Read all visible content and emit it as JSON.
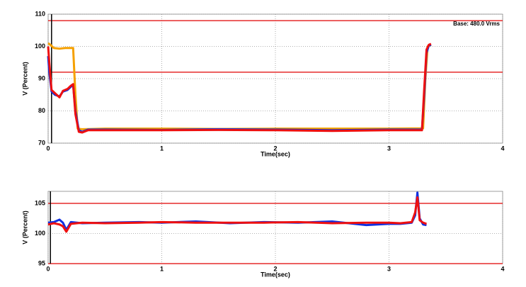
{
  "chart_data": [
    {
      "type": "line",
      "y_label": "V (Percent)",
      "x_label": "Time(sec)",
      "annotation": "Base: 480.0 Vrms",
      "xlim": [
        0,
        4
      ],
      "xticks": [
        0,
        1,
        2,
        3,
        4
      ],
      "ylim": [
        70,
        110
      ],
      "yticks": [
        70,
        80,
        90,
        100,
        110
      ],
      "grid": true,
      "reference_lines": [
        108,
        92
      ],
      "reference_color": "#e00000",
      "marker_x": 0.03,
      "series": [
        {
          "color": "#f5a000",
          "x": [
            0,
            0.02,
            0.05,
            0.1,
            0.15,
            0.2,
            0.22,
            0.24,
            0.26,
            0.3,
            0.5,
            1,
            1.5,
            2,
            2.5,
            3,
            3.3,
            3.32,
            3.34,
            3.37
          ],
          "values": [
            101,
            100.5,
            99.5,
            99.3,
            99.5,
            99.5,
            99.5,
            85,
            74.5,
            74.3,
            74.5,
            74.5,
            74.4,
            74.5,
            74.5,
            74.5,
            74.6,
            90,
            100,
            100.5
          ]
        },
        {
          "color": "#1030e0",
          "x": [
            0,
            0.01,
            0.03,
            0.06,
            0.1,
            0.13,
            0.17,
            0.2,
            0.22,
            0.24,
            0.27,
            0.3,
            0.35,
            0.5,
            1,
            1.5,
            2,
            2.5,
            3,
            3.29,
            3.31,
            3.33,
            3.35,
            3.37
          ],
          "values": [
            97,
            92,
            86,
            85,
            84.5,
            86,
            86.5,
            87.5,
            88,
            80,
            74,
            73.5,
            74.2,
            74.2,
            74.1,
            74.3,
            74.2,
            74,
            74.2,
            74.2,
            85,
            98,
            100.3,
            100.5
          ]
        },
        {
          "color": "#ee1010",
          "x": [
            0,
            0.01,
            0.03,
            0.06,
            0.1,
            0.13,
            0.17,
            0.2,
            0.22,
            0.24,
            0.27,
            0.3,
            0.35,
            0.5,
            1,
            1.5,
            2,
            2.5,
            3,
            3.29,
            3.31,
            3.33,
            3.35,
            3.37
          ],
          "values": [
            100,
            95,
            86.5,
            85.5,
            84.2,
            86.2,
            86.8,
            87.8,
            88.3,
            79,
            73.5,
            73.3,
            74,
            74,
            74,
            74.1,
            74,
            73.8,
            74,
            74,
            87,
            99,
            100.5,
            100.8
          ]
        }
      ]
    },
    {
      "type": "line",
      "y_label": "V (Percent)",
      "x_label": "Time(sec)",
      "xlim": [
        0,
        4
      ],
      "xticks": [
        0,
        1,
        2,
        3,
        4
      ],
      "ylim": [
        95,
        107
      ],
      "yticks": [
        95,
        100,
        105
      ],
      "grid": true,
      "reference_lines": [
        105,
        95
      ],
      "reference_color": "#e00000",
      "marker_x": 0.02,
      "series": [
        {
          "color": "#1030e0",
          "x": [
            0,
            0.05,
            0.1,
            0.13,
            0.16,
            0.2,
            0.3,
            0.5,
            0.8,
            1,
            1.3,
            1.6,
            1.9,
            2.2,
            2.5,
            2.8,
            3,
            3.1,
            3.2,
            3.23,
            3.25,
            3.27,
            3.3,
            3.33
          ],
          "values": [
            101.8,
            101.9,
            102.3,
            101.8,
            100.6,
            101.9,
            101.7,
            101.8,
            101.9,
            101.8,
            102,
            101.7,
            101.9,
            101.8,
            102,
            101.4,
            101.6,
            101.6,
            101.8,
            103,
            106.8,
            102.5,
            101.5,
            101.4
          ]
        },
        {
          "color": "#ee1010",
          "x": [
            0,
            0.05,
            0.1,
            0.13,
            0.16,
            0.2,
            0.3,
            0.5,
            0.8,
            1,
            1.3,
            1.6,
            1.9,
            2.2,
            2.5,
            2.8,
            3,
            3.1,
            3.2,
            3.23,
            3.25,
            3.27,
            3.3,
            3.33
          ],
          "values": [
            101.5,
            101.7,
            101.5,
            101.2,
            100.3,
            101.6,
            101.8,
            101.7,
            101.8,
            101.9,
            101.8,
            101.8,
            101.8,
            101.9,
            101.7,
            101.8,
            101.8,
            101.7,
            101.9,
            103.5,
            106,
            102.2,
            101.8,
            101.6
          ]
        }
      ]
    }
  ]
}
